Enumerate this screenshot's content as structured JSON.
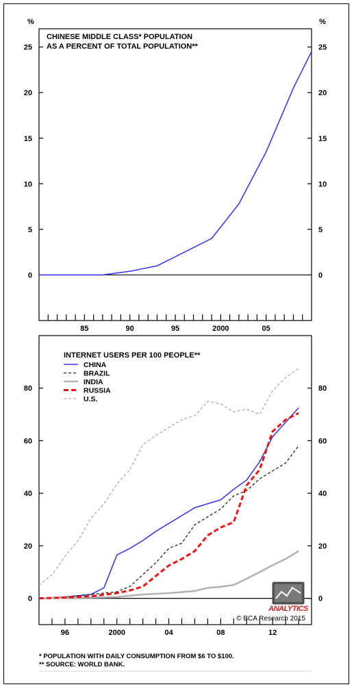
{
  "chart_data": [
    {
      "type": "line",
      "title": "CHINESE MIDDLE CLASS* POPULATION",
      "subtitle": "AS A PERCENT OF TOTAL POPULATION**",
      "unit_left": "%",
      "unit_right": "%",
      "ylim": [
        -5,
        27
      ],
      "yticks": [
        0,
        5,
        10,
        15,
        20,
        25
      ],
      "xlim": [
        1980,
        2010
      ],
      "xtick_labels": [
        "85",
        "90",
        "95",
        "2000",
        "05"
      ],
      "xtick_values": [
        1985,
        1990,
        1995,
        2000,
        2005
      ],
      "grid": false,
      "series": [
        {
          "color": "#3a3aee",
          "style": "solid",
          "x": [
            1980,
            1984,
            1987,
            1990,
            1993,
            1996,
            1999,
            2002,
            2005,
            2008,
            2010
          ],
          "y": [
            0,
            0,
            0,
            0.4,
            1.0,
            2.5,
            4.0,
            7.8,
            13.5,
            20.5,
            24.5
          ]
        }
      ]
    },
    {
      "type": "line",
      "title": "INTERNET USERS PER 100 PEOPLE**",
      "ylim": [
        -10,
        100
      ],
      "yticks": [
        0,
        20,
        40,
        60,
        80
      ],
      "xlim": [
        1994,
        2015
      ],
      "xtick_labels": [
        "96",
        "2000",
        "04",
        "08",
        "12"
      ],
      "xtick_values": [
        1996,
        2000,
        2004,
        2008,
        2012
      ],
      "legend_position": "top-left",
      "grid": false,
      "series": [
        {
          "name": "CHINA",
          "color": "#3a3aee",
          "style": "solid",
          "width": 1.6,
          "x": [
            1994,
            1996,
            1998,
            1999,
            2000,
            2001,
            2002,
            2003,
            2004,
            2005,
            2006,
            2007,
            2008,
            2009,
            2010,
            2011,
            2012,
            2013,
            2014
          ],
          "y": [
            0,
            0.5,
            1.5,
            4,
            16.5,
            19,
            22,
            25.5,
            28.5,
            31.5,
            34.5,
            36,
            37.5,
            41.5,
            45,
            52,
            61.5,
            67,
            72.5
          ]
        },
        {
          "name": "BRAZIL",
          "color": "#222222",
          "style": "dashed",
          "width": 1.3,
          "x": [
            1994,
            1996,
            1998,
            2000,
            2001,
            2002,
            2003,
            2004,
            2005,
            2006,
            2007,
            2008,
            2009,
            2010,
            2011,
            2012,
            2013,
            2014
          ],
          "y": [
            0,
            0.5,
            1.5,
            2.5,
            4.5,
            9,
            13.5,
            19,
            21,
            28,
            31,
            34,
            39,
            41,
            45.5,
            48.5,
            51.5,
            58
          ]
        },
        {
          "name": "INDIA",
          "color": "#b4b4b4",
          "style": "solid",
          "width": 2.6,
          "x": [
            1994,
            1996,
            1998,
            2000,
            2002,
            2004,
            2006,
            2007,
            2008,
            2009,
            2010,
            2011,
            2012,
            2013,
            2014
          ],
          "y": [
            0,
            0.2,
            0.3,
            0.5,
            1.5,
            2,
            2.8,
            4,
            4.4,
            5.1,
            7.5,
            10,
            12.6,
            15,
            18
          ]
        },
        {
          "name": "RUSSIA",
          "color": "#ee1111",
          "style": "dashed-bold",
          "width": 3,
          "x": [
            1994,
            1996,
            1998,
            2000,
            2001,
            2002,
            2003,
            2004,
            2005,
            2006,
            2007,
            2008,
            2009,
            2010,
            2011,
            2012,
            2013,
            2014
          ],
          "y": [
            0,
            0.3,
            0.8,
            2,
            3,
            4.5,
            8.5,
            12.5,
            15,
            18,
            24,
            27,
            29,
            43,
            49,
            63.5,
            68,
            70.5
          ]
        },
        {
          "name": "U.S.",
          "color": "#aaaaaa",
          "style": "dashed",
          "width": 1.3,
          "x": [
            1994,
            1995,
            1996,
            1997,
            1998,
            1999,
            2000,
            2001,
            2002,
            2003,
            2004,
            2005,
            2006,
            2007,
            2008,
            2009,
            2010,
            2011,
            2012,
            2013,
            2014
          ],
          "y": [
            5,
            9,
            16,
            22,
            30.5,
            36,
            43.5,
            49,
            58.5,
            62,
            65,
            68,
            69.5,
            75,
            74,
            71,
            72,
            70,
            79,
            84,
            87.5
          ]
        }
      ]
    }
  ],
  "branding": {
    "logo_text": "ANALYTICS",
    "copyright": "© BCA Research 2015"
  },
  "footnotes": [
    "* POPULATION WITH DAILY CONSUMPTION FROM $6 TO $100.",
    "** SOURCE: WORLD BANK."
  ]
}
